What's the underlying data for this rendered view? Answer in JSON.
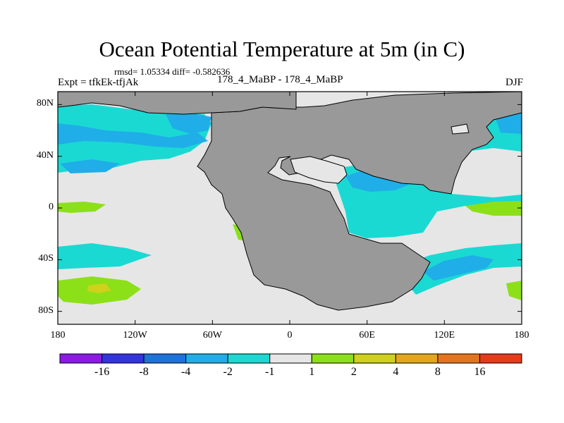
{
  "title": "Ocean Potential Temperature at 5m (in C)",
  "stats": "rmsd= 1.05334 diff= -0.582636",
  "left_label": "Expt = tfkEk-tfjAk",
  "center_label": "178_4_MaBP - 178_4_MaBP",
  "right_label": "DJF",
  "map": {
    "projection": "cylindrical-equidistant",
    "lon_range": [
      -180,
      180
    ],
    "lat_range": [
      -90,
      90
    ],
    "land_color": "#999999",
    "neutral_color": "#e6e6e6"
  },
  "y_ticks": [
    {
      "value": 80,
      "label": "80N"
    },
    {
      "value": 40,
      "label": "40N"
    },
    {
      "value": 0,
      "label": "0"
    },
    {
      "value": -40,
      "label": "40S"
    },
    {
      "value": -80,
      "label": "80S"
    }
  ],
  "x_ticks": [
    {
      "value": -180,
      "label": "180"
    },
    {
      "value": -120,
      "label": "120W"
    },
    {
      "value": -60,
      "label": "60W"
    },
    {
      "value": 0,
      "label": "0"
    },
    {
      "value": 60,
      "label": "60E"
    },
    {
      "value": 120,
      "label": "120E"
    },
    {
      "value": 180,
      "label": "180"
    }
  ],
  "colorbar": {
    "colors": [
      "#8b1ae6",
      "#3333e0",
      "#1d72dd",
      "#1faee8",
      "#1ad9d3",
      "#e6e6e6",
      "#8ce018",
      "#cfd11a",
      "#e6a61a",
      "#e6741a",
      "#e63a1a"
    ],
    "labels": [
      "-16",
      "-8",
      "-4",
      "-2",
      "-1",
      "1",
      "2",
      "4",
      "8",
      "16"
    ]
  }
}
